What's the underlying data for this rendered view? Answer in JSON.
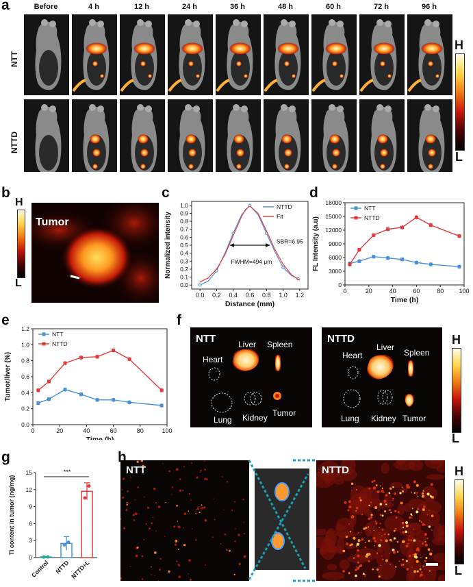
{
  "panel_a": {
    "label": "a",
    "times": [
      "Before",
      "4 h",
      "12 h",
      "24 h",
      "36 h",
      "48 h",
      "60 h",
      "72 h",
      "96 h"
    ],
    "rows": [
      "NTT",
      "NTTD"
    ],
    "colorbar": {
      "high": "H",
      "low": "L"
    }
  },
  "panel_b": {
    "label": "b",
    "title": "Tumor",
    "colorbar": {
      "high": "H",
      "low": "L"
    }
  },
  "panel_f": {
    "label": "f",
    "left_title": "NTT",
    "right_title": "NTTD",
    "organs": [
      "Heart",
      "Liver",
      "Spleen",
      "Lung",
      "Kidney",
      "Tumor"
    ],
    "colorbar": {
      "high": "H",
      "low": "L"
    }
  },
  "panel_h": {
    "label": "h",
    "left_title": "NTT",
    "right_title": "NTTD",
    "colorbar": {
      "high": "H",
      "low": "L"
    }
  },
  "chart_data": [
    {
      "panel": "c",
      "type": "line",
      "xlabel": "Distance (mm)",
      "ylabel": "Normalized intensity",
      "xlim": [
        -0.1,
        1.3
      ],
      "ylim": [
        -0.05,
        1.05
      ],
      "xticks": [
        0.0,
        0.2,
        0.4,
        0.6,
        0.8,
        1.0,
        1.2
      ],
      "yticks": [
        0.0,
        0.1,
        0.2,
        0.3,
        0.4,
        0.5,
        0.6,
        0.7,
        0.8,
        0.9,
        1.0
      ],
      "legend_position": "top-right",
      "annotations": [
        "SBR=6.95",
        "FWHM=494 μm"
      ],
      "series": [
        {
          "name": "NTTD",
          "color": "#4a90d9",
          "x": [
            0.0,
            0.1,
            0.2,
            0.3,
            0.4,
            0.5,
            0.6,
            0.7,
            0.8,
            0.9,
            1.0,
            1.1,
            1.18
          ],
          "y": [
            0.0,
            0.05,
            0.18,
            0.4,
            0.65,
            0.88,
            1.0,
            0.88,
            0.65,
            0.42,
            0.22,
            0.12,
            0.08
          ]
        },
        {
          "name": "Fit",
          "color": "#e23b3b",
          "x": [
            0.0,
            0.1,
            0.2,
            0.3,
            0.4,
            0.5,
            0.55,
            0.6,
            0.7,
            0.8,
            0.9,
            1.0,
            1.1,
            1.2
          ],
          "y": [
            0.04,
            0.09,
            0.2,
            0.38,
            0.62,
            0.86,
            0.95,
            0.99,
            0.9,
            0.68,
            0.45,
            0.26,
            0.13,
            0.06
          ]
        }
      ]
    },
    {
      "panel": "d",
      "type": "line",
      "xlabel": "Time (h)",
      "ylabel": "FL Intensity (a.u)",
      "xlim": [
        0,
        100
      ],
      "ylim": [
        0,
        18000
      ],
      "xticks": [
        0,
        20,
        40,
        60,
        80,
        100
      ],
      "yticks": [
        0,
        3000,
        6000,
        9000,
        12000,
        15000,
        18000
      ],
      "legend_position": "top-left",
      "series": [
        {
          "name": "NTT",
          "color": "#4a90d9",
          "x": [
            4,
            12,
            24,
            36,
            48,
            60,
            72,
            96
          ],
          "y": [
            4700,
            5200,
            6200,
            5900,
            5600,
            4900,
            4500,
            4000
          ]
        },
        {
          "name": "NTTD",
          "color": "#e23b3b",
          "x": [
            4,
            12,
            24,
            36,
            48,
            60,
            72,
            96
          ],
          "y": [
            4500,
            7700,
            10900,
            12200,
            12600,
            14800,
            13100,
            10700
          ]
        }
      ]
    },
    {
      "panel": "e",
      "type": "line",
      "xlabel": "Time (h)",
      "ylabel": "Tumor/liver (%)",
      "xlim": [
        0,
        100
      ],
      "ylim": [
        0,
        1.2
      ],
      "xticks": [
        0,
        20,
        40,
        60,
        80,
        100
      ],
      "yticks": [
        0.0,
        0.2,
        0.4,
        0.6,
        0.8,
        1.0,
        1.2
      ],
      "legend_position": "top-left",
      "series": [
        {
          "name": "NTT",
          "color": "#4a90d9",
          "x": [
            4,
            12,
            24,
            36,
            48,
            60,
            72,
            96
          ],
          "y": [
            0.27,
            0.32,
            0.44,
            0.38,
            0.31,
            0.31,
            0.28,
            0.24
          ]
        },
        {
          "name": "NTTD",
          "color": "#e23b3b",
          "x": [
            4,
            12,
            24,
            36,
            48,
            60,
            72,
            96
          ],
          "y": [
            0.43,
            0.54,
            0.77,
            0.84,
            0.85,
            0.93,
            0.82,
            0.43
          ]
        }
      ]
    },
    {
      "panel": "g",
      "type": "bar",
      "ylabel": "Ti content in tumor (ng/mg)",
      "categories": [
        "Control",
        "NTTD",
        "NTTD+L"
      ],
      "values": [
        0.1,
        2.5,
        11.7
      ],
      "errors": [
        0.1,
        1.2,
        1.5
      ],
      "colors": [
        "#2aa198",
        "#4a90d9",
        "#e23b3b"
      ],
      "ylim": [
        0,
        15
      ],
      "yticks": [
        0,
        3,
        6,
        9,
        12,
        15
      ],
      "significance": "***"
    }
  ]
}
